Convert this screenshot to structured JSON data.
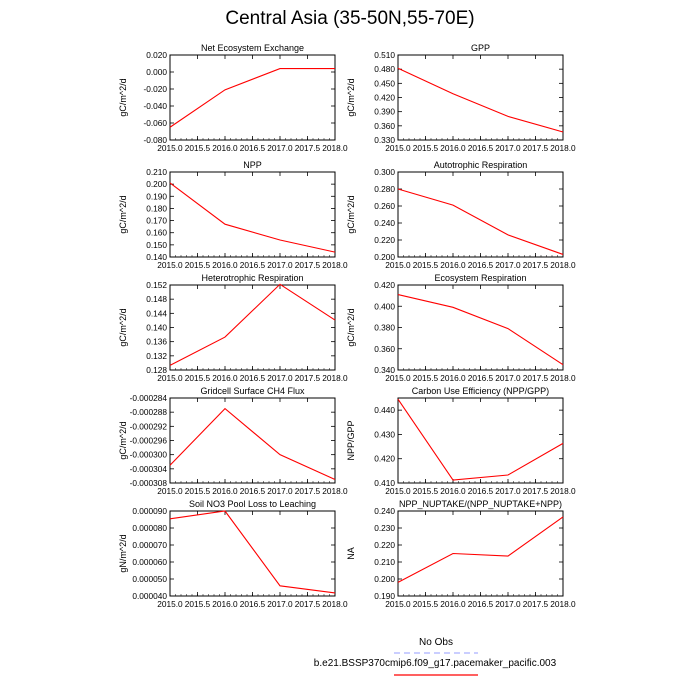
{
  "title": "Central Asia (35-50N,55-70E)",
  "line_color": "#ff0000",
  "obs_color": "#aab0ff",
  "legend": {
    "obs_label": "No Obs",
    "model_label": "b.e21.BSSP370cmip6.f09_g17.pacemaker_pacific.003"
  },
  "chart_data": [
    {
      "type": "line",
      "title": "Net Ecosystem Exchange",
      "ylabel": "gC/m^2/d",
      "xlabel": "",
      "x": [
        2015,
        2016,
        2017,
        2018
      ],
      "y": [
        -0.065,
        -0.021,
        0.004,
        0.004
      ],
      "xlim": [
        2015,
        2018
      ],
      "ylim": [
        -0.08,
        0.02
      ],
      "xticks": [
        "2015.0",
        "2015.5",
        "2016.0",
        "2016.5",
        "2017.0",
        "2017.5",
        "2018.0"
      ],
      "yticks": [
        "0.020",
        "0.000",
        "-0.020",
        "-0.040",
        "-0.060",
        "-0.080"
      ]
    },
    {
      "type": "line",
      "title": "GPP",
      "ylabel": "gC/m^2/d",
      "xlabel": "",
      "x": [
        2015,
        2016,
        2017,
        2018
      ],
      "y": [
        0.482,
        0.428,
        0.38,
        0.347
      ],
      "xlim": [
        2015,
        2018
      ],
      "ylim": [
        0.33,
        0.51
      ],
      "xticks": [
        "2015.0",
        "2015.5",
        "2016.0",
        "2016.5",
        "2017.0",
        "2017.5",
        "2018.0"
      ],
      "yticks": [
        "0.510",
        "0.480",
        "0.450",
        "0.420",
        "0.390",
        "0.360",
        "0.330"
      ]
    },
    {
      "type": "line",
      "title": "NPP",
      "ylabel": "gC/m^2/d",
      "xlabel": "",
      "x": [
        2015,
        2016,
        2017,
        2018
      ],
      "y": [
        0.201,
        0.167,
        0.154,
        0.144
      ],
      "xlim": [
        2015,
        2018
      ],
      "ylim": [
        0.14,
        0.21
      ],
      "xticks": [
        "2015.0",
        "2015.5",
        "2016.0",
        "2016.5",
        "2017.0",
        "2017.5",
        "2018.0"
      ],
      "yticks": [
        "0.210",
        "0.200",
        "0.190",
        "0.180",
        "0.170",
        "0.160",
        "0.150",
        "0.140"
      ]
    },
    {
      "type": "line",
      "title": "Autotrophic Respiration",
      "ylabel": "gC/m^2/d",
      "xlabel": "",
      "x": [
        2015,
        2016,
        2017,
        2018
      ],
      "y": [
        0.28,
        0.261,
        0.226,
        0.203
      ],
      "xlim": [
        2015,
        2018
      ],
      "ylim": [
        0.2,
        0.3
      ],
      "xticks": [
        "2015.0",
        "2015.5",
        "2016.0",
        "2016.5",
        "2017.0",
        "2017.5",
        "2018.0"
      ],
      "yticks": [
        "0.300",
        "0.280",
        "0.260",
        "0.240",
        "0.220",
        "0.200"
      ]
    },
    {
      "type": "line",
      "title": "Heterotrophic Respiration",
      "ylabel": "gC/m^2/d",
      "xlabel": "",
      "x": [
        2015,
        2016,
        2017,
        2018
      ],
      "y": [
        0.1293,
        0.1373,
        0.1522,
        0.1421
      ],
      "xlim": [
        2015,
        2018
      ],
      "ylim": [
        0.128,
        0.152
      ],
      "xticks": [
        "2015.0",
        "2015.5",
        "2016.0",
        "2016.5",
        "2017.0",
        "2017.5",
        "2018.0"
      ],
      "yticks": [
        "0.152",
        "0.148",
        "0.144",
        "0.140",
        "0.136",
        "0.132",
        "0.128"
      ]
    },
    {
      "type": "line",
      "title": "Ecosystem Respiration",
      "ylabel": "gC/m^2/d",
      "xlabel": "",
      "x": [
        2015,
        2016,
        2017,
        2018
      ],
      "y": [
        0.411,
        0.399,
        0.379,
        0.345
      ],
      "xlim": [
        2015,
        2018
      ],
      "ylim": [
        0.34,
        0.42
      ],
      "xticks": [
        "2015.0",
        "2015.5",
        "2016.0",
        "2016.5",
        "2017.0",
        "2017.5",
        "2018.0"
      ],
      "yticks": [
        "0.420",
        "0.400",
        "0.380",
        "0.360",
        "0.340"
      ]
    },
    {
      "type": "line",
      "title": "Gridcell Surface CH4 Flux",
      "ylabel": "gC/m^2/d",
      "xlabel": "",
      "x": [
        2015,
        2016,
        2017,
        2018
      ],
      "y": [
        -0.000303,
        -0.000287,
        -0.0003,
        -0.000307
      ],
      "xlim": [
        2015,
        2018
      ],
      "ylim": [
        -0.000308,
        -0.000284
      ],
      "xticks": [
        "2015.0",
        "2015.5",
        "2016.0",
        "2016.5",
        "2017.0",
        "2017.5",
        "2018.0"
      ],
      "yticks": [
        "-0.000284",
        "-0.000288",
        "-0.000292",
        "-0.000296",
        "-0.000300",
        "-0.000304",
        "-0.000308"
      ]
    },
    {
      "type": "line",
      "title": "Carbon Use Efficiency (NPP/GPP)",
      "ylabel": "NPP/GPP",
      "xlabel": "",
      "x": [
        2015,
        2016,
        2017,
        2018
      ],
      "y": [
        0.4445,
        0.4112,
        0.4133,
        0.4263
      ],
      "xlim": [
        2015,
        2018
      ],
      "ylim": [
        0.41,
        0.445
      ],
      "xticks": [
        "2015.0",
        "2015.5",
        "2016.0",
        "2016.5",
        "2017.0",
        "2017.5",
        "2018.0"
      ],
      "yticks": [
        "0.440",
        "0.430",
        "0.420",
        "0.410"
      ]
    },
    {
      "type": "line",
      "title": "Soil NO3 Pool Loss to Leaching",
      "ylabel": "gN/m^2/d",
      "xlabel": "",
      "x": [
        2015,
        2016,
        2017,
        2018
      ],
      "y": [
        8.54e-05,
        9e-05,
        4.6e-05,
        4.18e-05
      ],
      "xlim": [
        2015,
        2018
      ],
      "ylim": [
        4e-05,
        9e-05
      ],
      "xticks": [
        "2015.0",
        "2015.5",
        "2016.0",
        "2016.5",
        "2017.0",
        "2017.5",
        "2018.0"
      ],
      "yticks": [
        "0.000090",
        "0.000080",
        "0.000070",
        "0.000060",
        "0.000050",
        "0.000040"
      ]
    },
    {
      "type": "line",
      "title": "NPP_NUPTAKE/(NPP_NUPTAKE+NPP)",
      "ylabel": "NA",
      "xlabel": "",
      "x": [
        2015,
        2016,
        2017,
        2018
      ],
      "y": [
        0.198,
        0.215,
        0.2135,
        0.2365
      ],
      "xlim": [
        2015,
        2018
      ],
      "ylim": [
        0.19,
        0.24
      ],
      "xticks": [
        "2015.0",
        "2015.5",
        "2016.0",
        "2016.5",
        "2017.0",
        "2017.5",
        "2018.0"
      ],
      "yticks": [
        "0.240",
        "0.230",
        "0.220",
        "0.210",
        "0.200",
        "0.190"
      ]
    }
  ]
}
